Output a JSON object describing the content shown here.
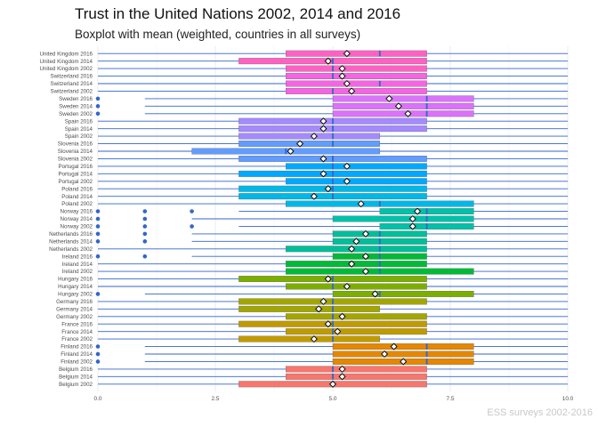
{
  "chart_data": {
    "type": "boxplot",
    "title": "Trust in the United Nations 2002, 2014 and 2016",
    "subtitle": "Boxplot with mean (weighted, countries in all surveys)",
    "caption": "ESS surveys 2002-2016",
    "xlim": [
      0,
      10
    ],
    "x_ticks": [
      0,
      2.5,
      5,
      7.5,
      10
    ],
    "x_tick_labels": [
      "0.0",
      "2.5",
      "5.0",
      "7.5",
      "10.0"
    ],
    "grid": "vertical major gridlines",
    "groups": [
      {
        "label": "United Kingdom 2016",
        "q1": 4,
        "median": 6,
        "q3": 7,
        "wmin": 0,
        "wmax": 10,
        "mean": 5.3,
        "outliers": [],
        "color": "#FF61C3"
      },
      {
        "label": "United Kingdom 2014",
        "q1": 3,
        "median": 5,
        "q3": 7,
        "wmin": 0,
        "wmax": 10,
        "mean": 4.9,
        "outliers": [],
        "color": "#FF61C3"
      },
      {
        "label": "United Kingdom 2002",
        "q1": 4,
        "median": 5,
        "q3": 7,
        "wmin": 0,
        "wmax": 10,
        "mean": 5.2,
        "outliers": [],
        "color": "#FF61C3"
      },
      {
        "label": "Switzerland 2016",
        "q1": 4,
        "median": 5,
        "q3": 7,
        "wmin": 0,
        "wmax": 10,
        "mean": 5.2,
        "outliers": [],
        "color": "#F564E3"
      },
      {
        "label": "Switzerland 2014",
        "q1": 4,
        "median": 6,
        "q3": 7,
        "wmin": 0,
        "wmax": 10,
        "mean": 5.3,
        "outliers": [],
        "color": "#F564E3"
      },
      {
        "label": "Switzerland 2002",
        "q1": 4,
        "median": 5,
        "q3": 7,
        "wmin": 0,
        "wmax": 10,
        "mean": 5.4,
        "outliers": [],
        "color": "#F564E3"
      },
      {
        "label": "Sweden 2016",
        "q1": 5,
        "median": 7,
        "q3": 8,
        "wmin": 1,
        "wmax": 10,
        "mean": 6.2,
        "outliers": [
          0
        ],
        "color": "#DB72FB"
      },
      {
        "label": "Sweden 2014",
        "q1": 5,
        "median": 7,
        "q3": 8,
        "wmin": 1,
        "wmax": 10,
        "mean": 6.4,
        "outliers": [
          0
        ],
        "color": "#DB72FB"
      },
      {
        "label": "Sweden 2002",
        "q1": 5,
        "median": 7,
        "q3": 8,
        "wmin": 1,
        "wmax": 10,
        "mean": 6.6,
        "outliers": [
          0
        ],
        "color": "#DB72FB"
      },
      {
        "label": "Spain 2016",
        "q1": 3,
        "median": 5,
        "q3": 7,
        "wmin": 0,
        "wmax": 10,
        "mean": 4.8,
        "outliers": [],
        "color": "#A58AFF"
      },
      {
        "label": "Spain 2014",
        "q1": 3,
        "median": 5,
        "q3": 7,
        "wmin": 0,
        "wmax": 10,
        "mean": 4.8,
        "outliers": [],
        "color": "#A58AFF"
      },
      {
        "label": "Spain 2002",
        "q1": 3,
        "median": 5,
        "q3": 6,
        "wmin": 0,
        "wmax": 10,
        "mean": 4.6,
        "outliers": [],
        "color": "#A58AFF"
      },
      {
        "label": "Slovenia 2016",
        "q1": 3,
        "median": 5,
        "q3": 6,
        "wmin": 0,
        "wmax": 10,
        "mean": 4.3,
        "outliers": [],
        "color": "#619CFF"
      },
      {
        "label": "Slovenia 2014",
        "q1": 2,
        "median": 4,
        "q3": 6,
        "wmin": 0,
        "wmax": 10,
        "mean": 4.1,
        "outliers": [],
        "color": "#619CFF"
      },
      {
        "label": "Slovenia 2002",
        "q1": 3,
        "median": 5,
        "q3": 7,
        "wmin": 0,
        "wmax": 10,
        "mean": 4.8,
        "outliers": [],
        "color": "#619CFF"
      },
      {
        "label": "Portugal 2016",
        "q1": 4,
        "median": 5,
        "q3": 7,
        "wmin": 0,
        "wmax": 10,
        "mean": 5.3,
        "outliers": [],
        "color": "#00A9FF"
      },
      {
        "label": "Portugal 2014",
        "q1": 3,
        "median": 5,
        "q3": 7,
        "wmin": 0,
        "wmax": 10,
        "mean": 4.8,
        "outliers": [],
        "color": "#00A9FF"
      },
      {
        "label": "Portugal 2002",
        "q1": 4,
        "median": 5,
        "q3": 7,
        "wmin": 0,
        "wmax": 10,
        "mean": 5.3,
        "outliers": [],
        "color": "#00A9FF"
      },
      {
        "label": "Poland 2016",
        "q1": 3,
        "median": 5,
        "q3": 7,
        "wmin": 0,
        "wmax": 10,
        "mean": 4.9,
        "outliers": [],
        "color": "#00B8E7"
      },
      {
        "label": "Poland 2014",
        "q1": 3,
        "median": 5,
        "q3": 7,
        "wmin": 0,
        "wmax": 10,
        "mean": 4.6,
        "outliers": [],
        "color": "#00B8E7"
      },
      {
        "label": "Poland 2002",
        "q1": 4,
        "median": 6,
        "q3": 8,
        "wmin": 0,
        "wmax": 10,
        "mean": 5.6,
        "outliers": [],
        "color": "#00B8E7"
      },
      {
        "label": "Norway 2016",
        "q1": 6,
        "median": 7,
        "q3": 8,
        "wmin": 3,
        "wmax": 10,
        "mean": 6.8,
        "outliers": [
          0,
          1,
          2
        ],
        "color": "#00C1AA"
      },
      {
        "label": "Norway 2014",
        "q1": 5,
        "median": 7,
        "q3": 8,
        "wmin": 2,
        "wmax": 10,
        "mean": 6.7,
        "outliers": [
          0,
          1
        ],
        "color": "#00C1AA"
      },
      {
        "label": "Norway 2002",
        "q1": 6,
        "median": 7,
        "q3": 8,
        "wmin": 3,
        "wmax": 10,
        "mean": 6.7,
        "outliers": [
          0,
          1,
          2
        ],
        "color": "#00C1AA"
      },
      {
        "label": "Netherlands 2016",
        "q1": 5,
        "median": 6,
        "q3": 7,
        "wmin": 2,
        "wmax": 10,
        "mean": 5.7,
        "outliers": [
          0,
          1
        ],
        "color": "#00BE9A"
      },
      {
        "label": "Netherlands 2014",
        "q1": 5,
        "median": 6,
        "q3": 7,
        "wmin": 2,
        "wmax": 10,
        "mean": 5.5,
        "outliers": [
          0,
          1
        ],
        "color": "#00BE9A"
      },
      {
        "label": "Netherlands 2002",
        "q1": 4,
        "median": 6,
        "q3": 7,
        "wmin": 0,
        "wmax": 10,
        "mean": 5.4,
        "outliers": [],
        "color": "#00BE9A"
      },
      {
        "label": "Ireland 2016",
        "q1": 5,
        "median": 6,
        "q3": 7,
        "wmin": 2,
        "wmax": 10,
        "mean": 5.7,
        "outliers": [
          0,
          1
        ],
        "color": "#00BA38"
      },
      {
        "label": "Ireland 2014",
        "q1": 4,
        "median": 6,
        "q3": 7,
        "wmin": 0,
        "wmax": 10,
        "mean": 5.4,
        "outliers": [],
        "color": "#00BA38"
      },
      {
        "label": "Ireland 2002",
        "q1": 4,
        "median": 6,
        "q3": 8,
        "wmin": 0,
        "wmax": 10,
        "mean": 5.7,
        "outliers": [],
        "color": "#00BA38"
      },
      {
        "label": "Hungary 2016",
        "q1": 3,
        "median": 5,
        "q3": 7,
        "wmin": 0,
        "wmax": 10,
        "mean": 4.9,
        "outliers": [],
        "color": "#7CAE00"
      },
      {
        "label": "Hungary 2014",
        "q1": 4,
        "median": 5,
        "q3": 7,
        "wmin": 0,
        "wmax": 10,
        "mean": 5.3,
        "outliers": [],
        "color": "#7CAE00"
      },
      {
        "label": "Hungary 2002",
        "q1": 5,
        "median": 6,
        "q3": 8,
        "wmin": 1,
        "wmax": 10,
        "mean": 5.9,
        "outliers": [
          0
        ],
        "color": "#7CAE00"
      },
      {
        "label": "Germany 2016",
        "q1": 3,
        "median": 5,
        "q3": 7,
        "wmin": 0,
        "wmax": 10,
        "mean": 4.8,
        "outliers": [],
        "color": "#A3A500"
      },
      {
        "label": "Germany 2014",
        "q1": 3,
        "median": 5,
        "q3": 6,
        "wmin": 0,
        "wmax": 10,
        "mean": 4.7,
        "outliers": [],
        "color": "#A3A500"
      },
      {
        "label": "Germany 2002",
        "q1": 4,
        "median": 5,
        "q3": 7,
        "wmin": 0,
        "wmax": 10,
        "mean": 5.2,
        "outliers": [],
        "color": "#A3A500"
      },
      {
        "label": "France 2016",
        "q1": 3,
        "median": 5,
        "q3": 7,
        "wmin": 0,
        "wmax": 10,
        "mean": 4.9,
        "outliers": [],
        "color": "#C09B00"
      },
      {
        "label": "France 2014",
        "q1": 4,
        "median": 5,
        "q3": 7,
        "wmin": 0,
        "wmax": 10,
        "mean": 5.1,
        "outliers": [],
        "color": "#C09B00"
      },
      {
        "label": "France 2002",
        "q1": 3,
        "median": 5,
        "q3": 6,
        "wmin": 0,
        "wmax": 10,
        "mean": 4.6,
        "outliers": [],
        "color": "#C09B00"
      },
      {
        "label": "Finland 2016",
        "q1": 5,
        "median": 7,
        "q3": 8,
        "wmin": 1,
        "wmax": 10,
        "mean": 6.3,
        "outliers": [
          0
        ],
        "color": "#E58700"
      },
      {
        "label": "Finland 2014",
        "q1": 5,
        "median": 7,
        "q3": 8,
        "wmin": 1,
        "wmax": 10,
        "mean": 6.1,
        "outliers": [
          0
        ],
        "color": "#E58700"
      },
      {
        "label": "Finland 2002",
        "q1": 5,
        "median": 7,
        "q3": 8,
        "wmin": 1,
        "wmax": 10,
        "mean": 6.5,
        "outliers": [
          0
        ],
        "color": "#E58700"
      },
      {
        "label": "Belgium 2016",
        "q1": 4,
        "median": 5,
        "q3": 7,
        "wmin": 0,
        "wmax": 10,
        "mean": 5.2,
        "outliers": [],
        "color": "#F8766D"
      },
      {
        "label": "Belgium 2014",
        "q1": 4,
        "median": 5,
        "q3": 7,
        "wmin": 0,
        "wmax": 10,
        "mean": 5.2,
        "outliers": [],
        "color": "#F8766D"
      },
      {
        "label": "Belgium 2002",
        "q1": 3,
        "median": 5,
        "q3": 7,
        "wmin": 0,
        "wmax": 10,
        "mean": 5.0,
        "outliers": [],
        "color": "#F8766D"
      }
    ],
    "colors": {
      "whisker": "#3366CC",
      "median": "#3366CC",
      "outlier": "#3366CC",
      "gridline": "#ebebeb",
      "mean_marker_fill": "#ffffff",
      "mean_marker_stroke": "#000000"
    }
  }
}
